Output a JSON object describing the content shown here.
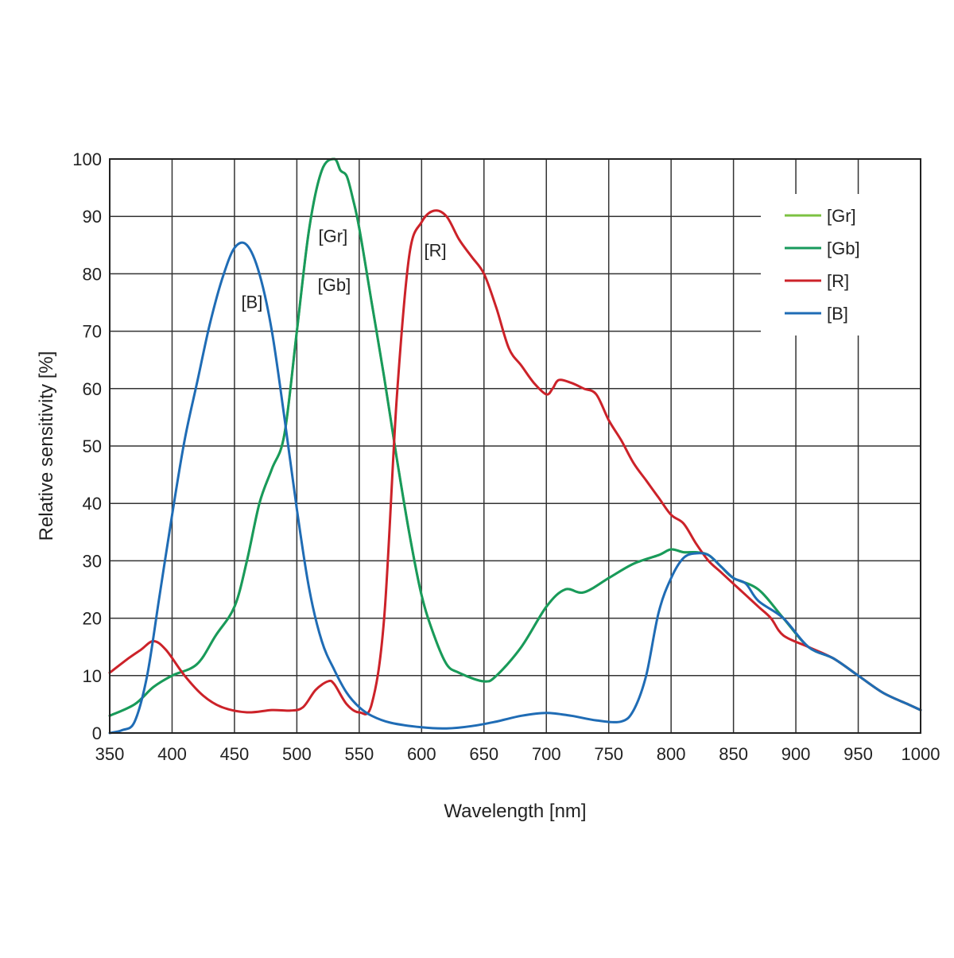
{
  "chart_data": {
    "type": "line",
    "xlabel": "Wavelength [nm]",
    "ylabel": "Relative sensitivity [%]",
    "xlim": [
      350,
      1000
    ],
    "ylim": [
      0,
      100
    ],
    "x_ticks": [
      350,
      400,
      450,
      500,
      550,
      600,
      650,
      700,
      750,
      800,
      850,
      900,
      950,
      1000
    ],
    "y_ticks": [
      0,
      10,
      20,
      30,
      40,
      50,
      60,
      70,
      80,
      90,
      100
    ],
    "grid": true,
    "legend_position": "top-right",
    "series": [
      {
        "name": "[Gr]",
        "color": "#7cc242",
        "x": [
          350,
          370,
          385,
          400,
          420,
          435,
          450,
          460,
          470,
          480,
          490,
          500,
          510,
          520,
          530,
          535,
          540,
          545,
          550,
          560,
          570,
          580,
          590,
          600,
          610,
          620,
          630,
          650,
          660,
          680,
          700,
          715,
          730,
          750,
          770,
          790,
          800,
          810,
          820,
          830,
          840,
          850,
          870,
          890,
          910,
          930,
          950,
          970,
          990,
          1000
        ],
        "y": [
          3,
          5,
          8,
          10,
          12,
          17,
          22,
          30,
          40,
          46,
          52,
          70,
          88,
          98,
          100,
          98,
          97,
          93,
          88,
          75,
          62,
          48,
          35,
          24,
          17,
          12,
          10.5,
          9,
          10,
          15,
          22,
          25,
          24.5,
          27,
          29.5,
          31,
          32,
          31.5,
          31.5,
          31,
          29,
          27,
          25,
          20,
          15,
          13,
          10,
          7,
          5,
          4
        ]
      },
      {
        "name": "[Gb]",
        "color": "#189a5c",
        "x": [
          350,
          370,
          385,
          400,
          420,
          435,
          450,
          460,
          470,
          480,
          490,
          500,
          510,
          520,
          530,
          535,
          540,
          545,
          550,
          560,
          570,
          580,
          590,
          600,
          610,
          620,
          630,
          650,
          660,
          680,
          700,
          715,
          730,
          750,
          770,
          790,
          800,
          810,
          820,
          830,
          840,
          850,
          870,
          890,
          910,
          930,
          950,
          970,
          990,
          1000
        ],
        "y": [
          3,
          5,
          8,
          10,
          12,
          17,
          22,
          30,
          40,
          46,
          52,
          70,
          88,
          98,
          100,
          98,
          97,
          93,
          88,
          75,
          62,
          48,
          35,
          24,
          17,
          12,
          10.5,
          9,
          10,
          15,
          22,
          25,
          24.5,
          27,
          29.5,
          31,
          32,
          31.5,
          31.5,
          31,
          29,
          27,
          25,
          20,
          15,
          13,
          10,
          7,
          5,
          4
        ]
      },
      {
        "name": "[R]",
        "color": "#cc2229",
        "x": [
          350,
          365,
          375,
          385,
          395,
          410,
          425,
          440,
          460,
          480,
          495,
          505,
          515,
          525,
          530,
          540,
          550,
          560,
          570,
          580,
          590,
          600,
          610,
          620,
          630,
          640,
          650,
          660,
          670,
          680,
          690,
          700,
          705,
          710,
          720,
          730,
          740,
          750,
          760,
          770,
          780,
          790,
          800,
          810,
          820,
          830,
          840,
          850,
          860,
          870,
          880,
          890,
          910,
          930,
          950,
          970,
          990,
          1000
        ],
        "y": [
          10.5,
          13,
          14.5,
          16,
          14.5,
          10,
          6.5,
          4.5,
          3.6,
          4,
          3.9,
          4.5,
          7.5,
          9,
          8.5,
          5,
          3.6,
          5,
          20,
          58,
          83,
          89,
          91,
          90,
          86,
          83,
          80,
          74,
          67,
          64,
          61,
          59,
          60,
          61.5,
          61,
          60,
          59,
          54.5,
          51,
          47,
          44,
          41,
          38,
          36.5,
          33,
          30,
          28,
          26,
          24,
          22,
          20,
          17,
          15,
          13,
          10,
          7,
          5,
          4
        ]
      },
      {
        "name": "[B]",
        "color": "#1f6cb5",
        "x": [
          350,
          360,
          370,
          380,
          390,
          400,
          410,
          420,
          430,
          440,
          450,
          460,
          470,
          480,
          490,
          500,
          510,
          520,
          530,
          540,
          550,
          560,
          575,
          600,
          620,
          640,
          660,
          680,
          700,
          720,
          740,
          760,
          770,
          780,
          790,
          800,
          810,
          820,
          830,
          840,
          850,
          860,
          870,
          890,
          910,
          930,
          950,
          970,
          990,
          1000
        ],
        "y": [
          0,
          0.5,
          2,
          10,
          24,
          38,
          51,
          61,
          71,
          79,
          84.5,
          85,
          80,
          70,
          55,
          39,
          25,
          16,
          11,
          7,
          4.5,
          3,
          1.8,
          1,
          0.8,
          1.2,
          2,
          3,
          3.5,
          3,
          2.2,
          2,
          4,
          10,
          21,
          27,
          30.5,
          31.3,
          31,
          29,
          27,
          26,
          23,
          20,
          15,
          13,
          10,
          7,
          5,
          4
        ]
      }
    ],
    "annotations": [
      {
        "text": "[Gr]",
        "x": 529,
        "y": 85.5
      },
      {
        "text": "[Gb]",
        "x": 530,
        "y": 77
      },
      {
        "text": "[R]",
        "x": 611,
        "y": 83
      },
      {
        "text": "[B]",
        "x": 464,
        "y": 74
      }
    ]
  }
}
